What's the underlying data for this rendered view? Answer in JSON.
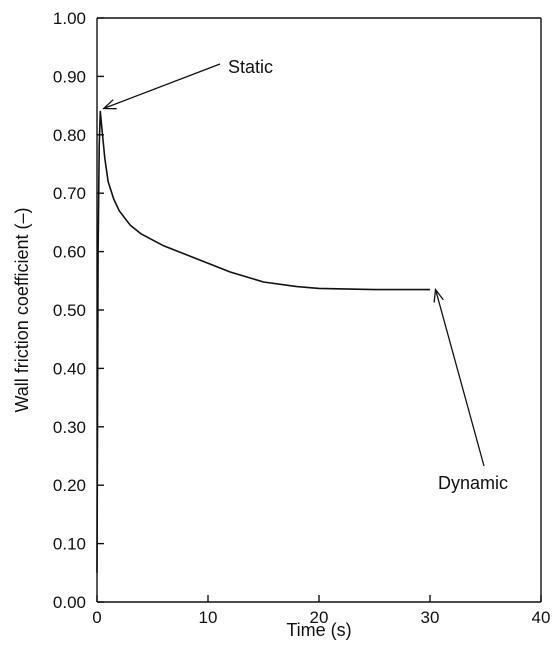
{
  "chart_data": {
    "type": "line",
    "title": "",
    "xlabel": "Time (s)",
    "ylabel": "Wall friction coefficient (–)",
    "xlim": [
      0,
      40
    ],
    "ylim": [
      0.0,
      1.0
    ],
    "x_ticks": [
      "0",
      "10",
      "20",
      "30",
      "40"
    ],
    "y_ticks": [
      "0.00",
      "0.10",
      "0.20",
      "0.30",
      "0.40",
      "0.50",
      "0.60",
      "0.70",
      "0.80",
      "0.90",
      "1.00"
    ],
    "grid": false,
    "series": [
      {
        "x": [
          0.0,
          0.1,
          0.2,
          0.3,
          0.4,
          0.5,
          0.7,
          1.0,
          1.5,
          2.0,
          3.0,
          4.0,
          6.0,
          8.0,
          10.0,
          12.0,
          15.0,
          18.0,
          20.0,
          25.0,
          30.0
        ],
        "y": [
          0.05,
          0.6,
          0.78,
          0.84,
          0.82,
          0.8,
          0.76,
          0.72,
          0.69,
          0.67,
          0.645,
          0.63,
          0.61,
          0.595,
          0.58,
          0.565,
          0.548,
          0.54,
          0.537,
          0.535,
          0.535
        ]
      }
    ],
    "annotations": [
      {
        "text": "Static",
        "point": {
          "x": 0.6,
          "y": 0.845
        }
      },
      {
        "text": "Dynamic",
        "point": {
          "x": 30.5,
          "y": 0.535
        }
      }
    ]
  }
}
